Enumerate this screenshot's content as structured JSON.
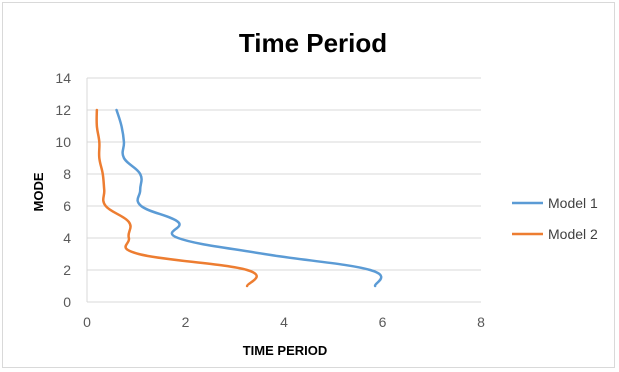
{
  "chart_data": {
    "type": "line",
    "title": "Time Period",
    "xlabel": "TIME PERIOD",
    "ylabel": "MODE",
    "xlim": [
      0,
      8
    ],
    "ylim": [
      0,
      14
    ],
    "xticks": [
      0,
      2,
      4,
      6,
      8
    ],
    "yticks": [
      0,
      2,
      4,
      6,
      8,
      10,
      12,
      14
    ],
    "grid": "horizontal",
    "legend_position": "right",
    "series": [
      {
        "name": "Model 1",
        "color": "#5b9bd5",
        "points": [
          {
            "x": 5.85,
            "y": 1
          },
          {
            "x": 5.75,
            "y": 2
          },
          {
            "x": 3.6,
            "y": 3
          },
          {
            "x": 1.85,
            "y": 4
          },
          {
            "x": 1.85,
            "y": 5
          },
          {
            "x": 1.1,
            "y": 6
          },
          {
            "x": 1.08,
            "y": 7
          },
          {
            "x": 1.08,
            "y": 8
          },
          {
            "x": 0.75,
            "y": 9
          },
          {
            "x": 0.75,
            "y": 10
          },
          {
            "x": 0.7,
            "y": 11
          },
          {
            "x": 0.6,
            "y": 12
          }
        ]
      },
      {
        "name": "Model 2",
        "color": "#ed7d31",
        "points": [
          {
            "x": 3.25,
            "y": 1
          },
          {
            "x": 3.25,
            "y": 2
          },
          {
            "x": 1.05,
            "y": 3
          },
          {
            "x": 0.85,
            "y": 4
          },
          {
            "x": 0.85,
            "y": 5
          },
          {
            "x": 0.38,
            "y": 6
          },
          {
            "x": 0.35,
            "y": 7
          },
          {
            "x": 0.32,
            "y": 8
          },
          {
            "x": 0.25,
            "y": 9
          },
          {
            "x": 0.25,
            "y": 10
          },
          {
            "x": 0.2,
            "y": 11
          },
          {
            "x": 0.2,
            "y": 12
          }
        ]
      }
    ]
  }
}
